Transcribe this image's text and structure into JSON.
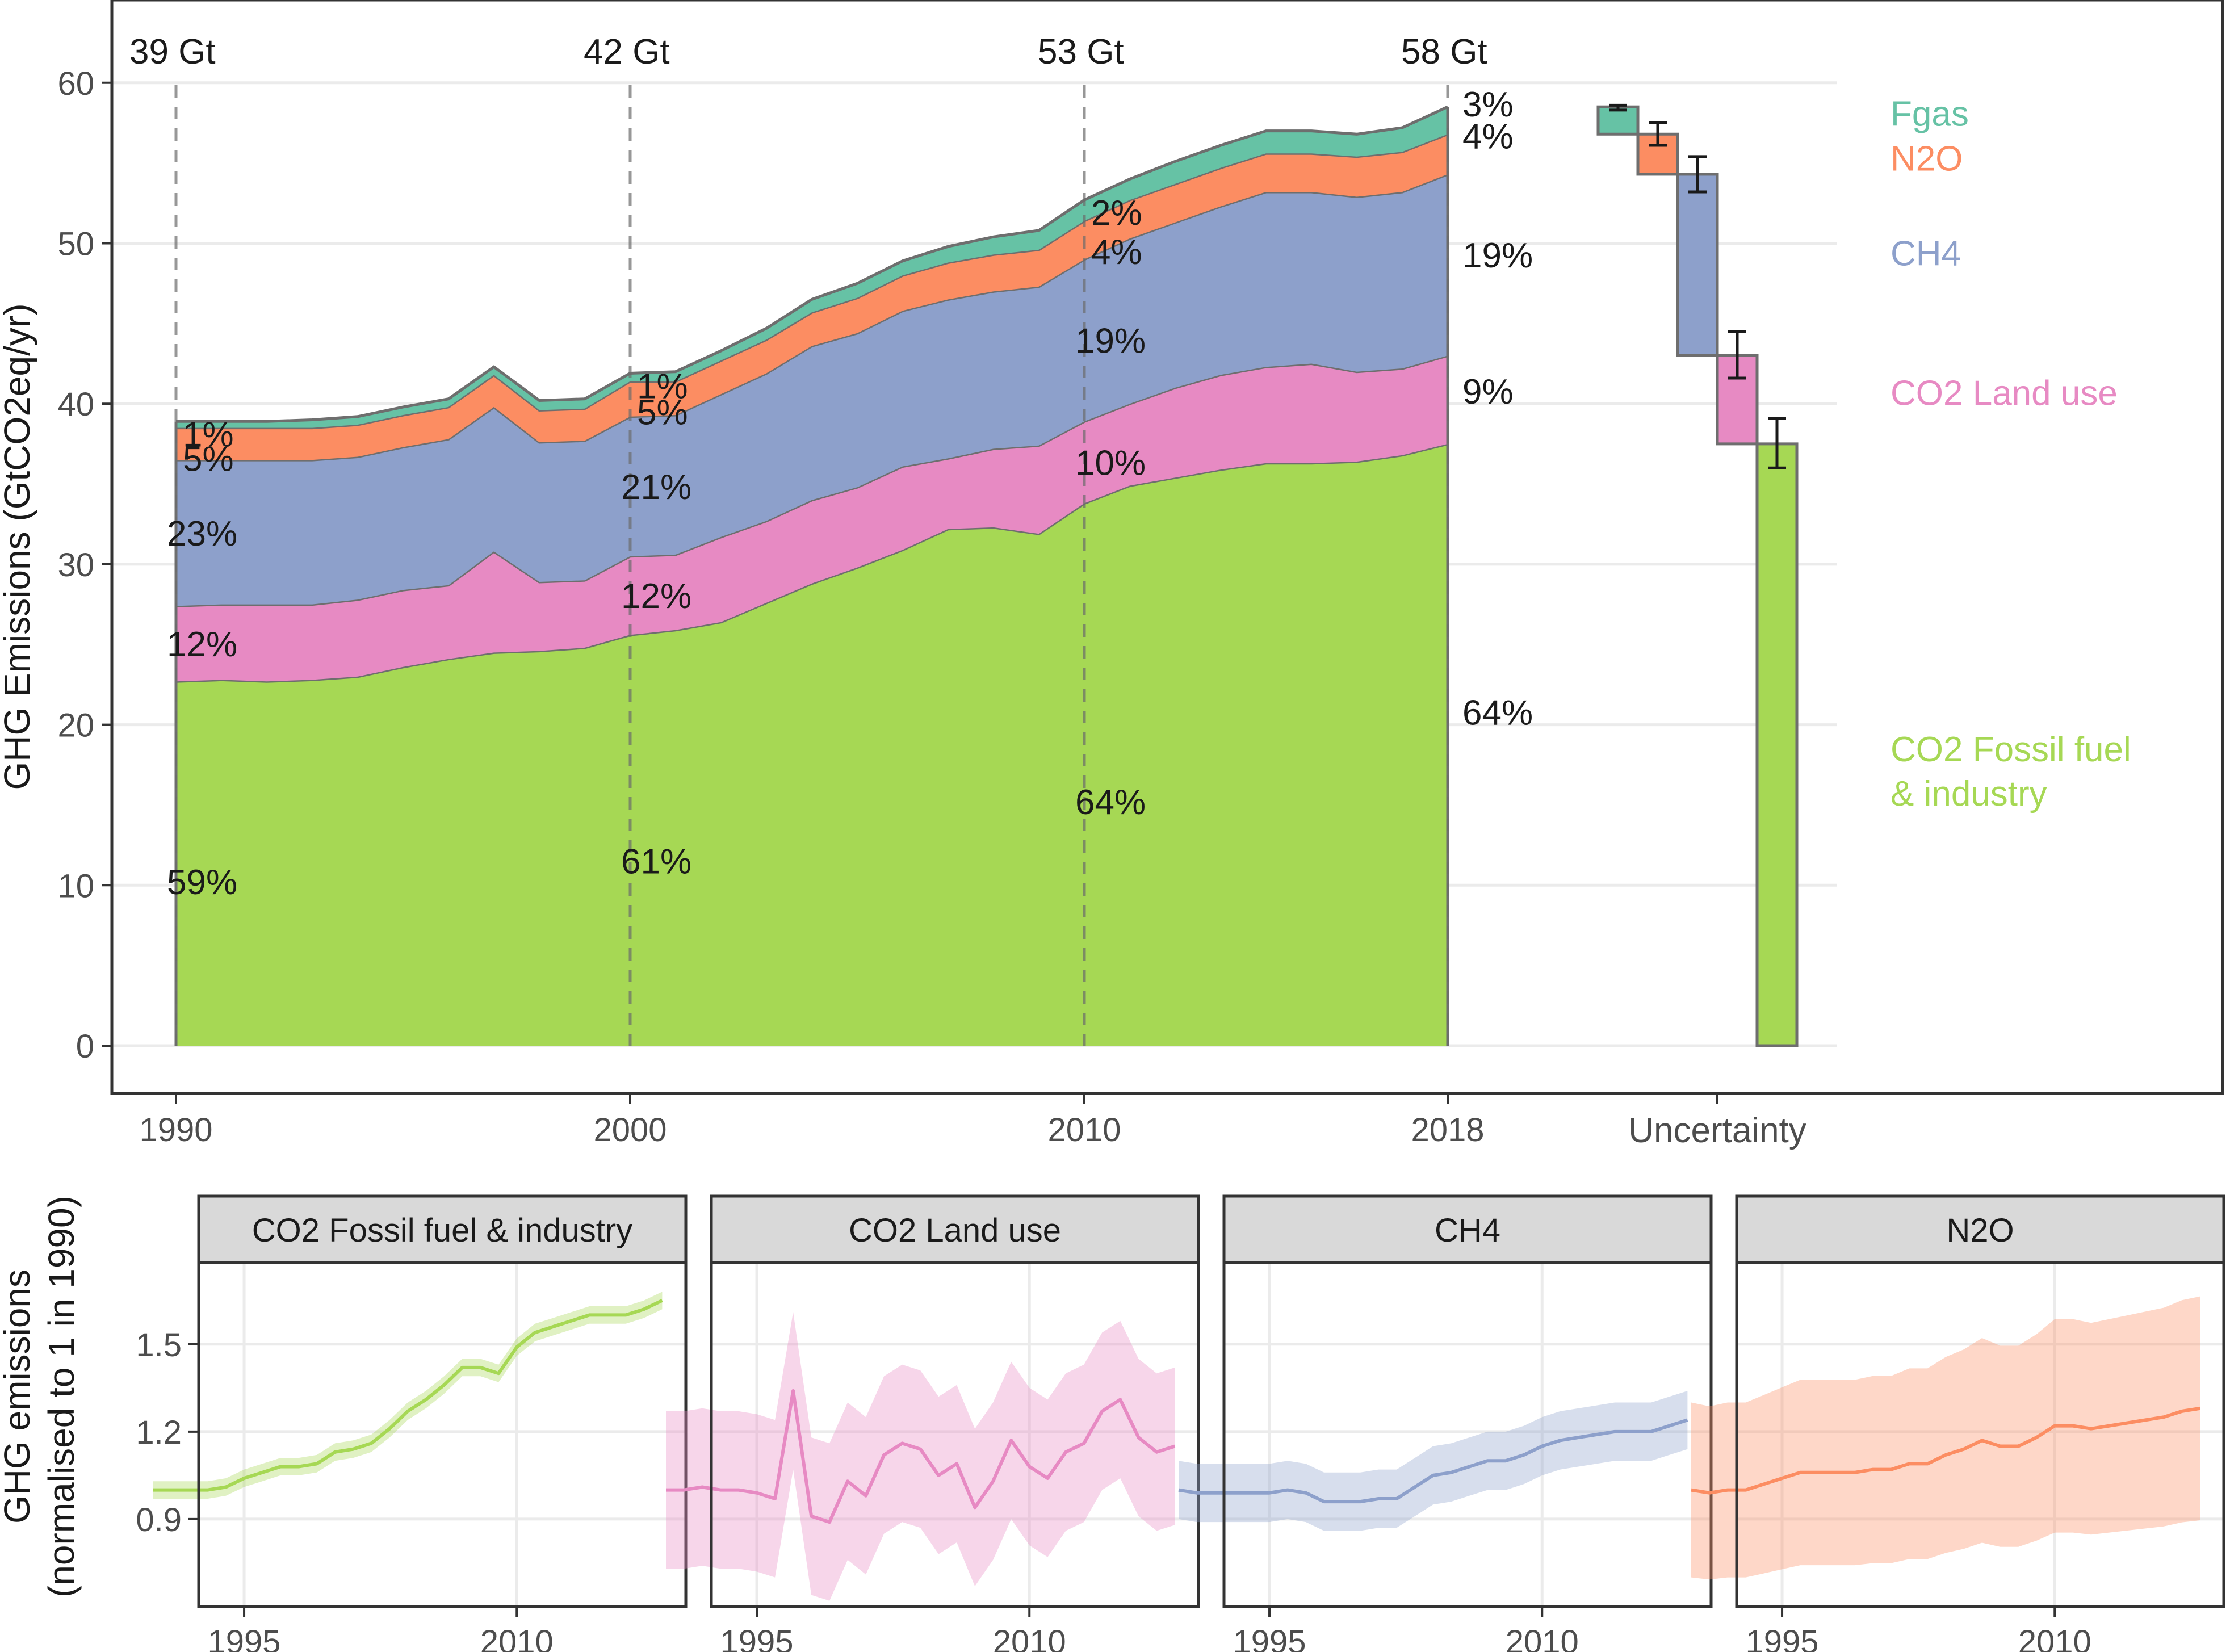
{
  "chart_data": [
    {
      "type": "area",
      "stacked": true,
      "ylabel": "GHG Emissions (GtCO2eq/yr)",
      "xlabel": "",
      "ylim": [
        0,
        60
      ],
      "yticks": [
        0,
        10,
        20,
        30,
        40,
        50,
        60
      ],
      "xticks": [
        1990,
        2000,
        2010,
        2018
      ],
      "grid": true,
      "x": [
        1990,
        1991,
        1992,
        1993,
        1994,
        1995,
        1996,
        1997,
        1998,
        1999,
        2000,
        2001,
        2002,
        2003,
        2004,
        2005,
        2006,
        2007,
        2008,
        2009,
        2010,
        2011,
        2012,
        2013,
        2014,
        2015,
        2016,
        2017,
        2018
      ],
      "series": [
        {
          "name": "CO2 Fossil fuel & industry",
          "color": "#A6D854",
          "values": [
            22.7,
            22.8,
            22.7,
            22.8,
            23.0,
            23.6,
            24.1,
            24.5,
            24.6,
            24.8,
            25.6,
            25.9,
            26.4,
            27.6,
            28.8,
            29.8,
            30.9,
            32.2,
            32.3,
            31.9,
            33.8,
            34.9,
            35.4,
            35.9,
            36.3,
            36.3,
            36.4,
            36.8,
            37.5
          ]
        },
        {
          "name": "CO2 Land use",
          "color": "#E78AC3",
          "values": [
            4.7,
            4.7,
            4.8,
            4.7,
            4.8,
            4.8,
            4.6,
            6.3,
            4.3,
            4.2,
            4.9,
            4.7,
            5.3,
            5.1,
            5.2,
            5.0,
            5.2,
            4.4,
            4.9,
            5.5,
            5.1,
            5.1,
            5.6,
            5.9,
            6.0,
            6.2,
            5.6,
            5.4,
            5.5
          ]
        },
        {
          "name": "CH4",
          "color": "#8DA0CB",
          "values": [
            9.1,
            9.0,
            9.0,
            9.0,
            8.9,
            8.9,
            9.1,
            9.0,
            8.7,
            8.7,
            8.7,
            8.7,
            8.9,
            9.2,
            9.6,
            9.6,
            9.7,
            9.9,
            9.8,
            9.9,
            10.1,
            10.3,
            10.3,
            10.5,
            10.9,
            10.7,
            10.9,
            11.0,
            11.3
          ]
        },
        {
          "name": "N2O",
          "color": "#FC8D62",
          "values": [
            2.0,
            2.0,
            2.0,
            2.0,
            2.0,
            2.0,
            2.0,
            2.0,
            2.0,
            2.0,
            2.2,
            2.1,
            2.1,
            2.1,
            2.1,
            2.2,
            2.2,
            2.3,
            2.3,
            2.3,
            2.4,
            2.4,
            2.4,
            2.4,
            2.4,
            2.4,
            2.5,
            2.5,
            2.5
          ]
        },
        {
          "name": "Fgas",
          "color": "#66C2A5",
          "values": [
            0.4,
            0.4,
            0.4,
            0.5,
            0.5,
            0.5,
            0.5,
            0.5,
            0.6,
            0.6,
            0.5,
            0.6,
            0.6,
            0.7,
            0.8,
            0.9,
            0.9,
            1.0,
            1.1,
            1.2,
            1.3,
            1.3,
            1.4,
            1.4,
            1.4,
            1.4,
            1.4,
            1.5,
            1.7
          ]
        }
      ],
      "gt_markers": [
        {
          "year": 1990,
          "label": "39 Gt"
        },
        {
          "year": 2000,
          "label": "42 Gt"
        },
        {
          "year": 2010,
          "label": "53 Gt"
        },
        {
          "year": 2018,
          "label": "58 Gt"
        }
      ],
      "percent_labels": [
        {
          "year": 1990,
          "labels": [
            "59%",
            "12%",
            "23%",
            "5%",
            "1%"
          ]
        },
        {
          "year": 2000,
          "labels": [
            "61%",
            "12%",
            "21%",
            "5%",
            "1%"
          ]
        },
        {
          "year": 2010,
          "labels": [
            "64%",
            "10%",
            "19%",
            "4%",
            "2%"
          ]
        },
        {
          "year": 2018,
          "labels": [
            "64%",
            "9%",
            "19%",
            "4%",
            "3%"
          ]
        }
      ],
      "uncertainty": {
        "label": "Uncertainty",
        "bars": [
          {
            "name": "Fgas",
            "low": 56.8,
            "high": 58.5,
            "err_low": 58.3,
            "err_high": 58.6
          },
          {
            "name": "N2O",
            "low": 54.3,
            "high": 56.8,
            "err_low": 56.1,
            "err_high": 57.5
          },
          {
            "name": "CH4",
            "low": 43.0,
            "high": 54.3,
            "err_low": 53.2,
            "err_high": 55.4
          },
          {
            "name": "CO2 Land use",
            "low": 37.5,
            "high": 43.0,
            "err_low": 41.6,
            "err_high": 44.5
          },
          {
            "name": "CO2 Fossil fuel & industry",
            "low": 0.0,
            "high": 37.5,
            "err_low": 36.0,
            "err_high": 39.1
          }
        ]
      },
      "legend": [
        {
          "name": "Fgas",
          "color": "#66C2A5",
          "lines": [
            "Fgas"
          ]
        },
        {
          "name": "N2O",
          "color": "#FC8D62",
          "lines": [
            "N2O"
          ]
        },
        {
          "name": "CH4",
          "color": "#8DA0CB",
          "lines": [
            "CH4"
          ]
        },
        {
          "name": "CO2 Land use",
          "color": "#E78AC3",
          "lines": [
            "CO2 Land use"
          ]
        },
        {
          "name": "CO2 Fossil fuel & industry",
          "color": "#A6D854",
          "lines": [
            "CO2 Fossil fuel",
            "& industry"
          ]
        }
      ]
    },
    {
      "type": "line",
      "facets": true,
      "ylabel_lines": [
        "GHG emissions",
        "(normalised to 1 in 1990)"
      ],
      "ylim": [
        0.6,
        1.78
      ],
      "yticks": [
        0.9,
        1.2,
        1.5
      ],
      "xlim": [
        1990,
        2018
      ],
      "xticks": [
        1995,
        2010
      ],
      "x": [
        1990,
        1991,
        1992,
        1993,
        1994,
        1995,
        1996,
        1997,
        1998,
        1999,
        2000,
        2001,
        2002,
        2003,
        2004,
        2005,
        2006,
        2007,
        2008,
        2009,
        2010,
        2011,
        2012,
        2013,
        2014,
        2015,
        2016,
        2017,
        2018
      ],
      "panels": [
        {
          "title": "CO2 Fossil fuel & industry",
          "color": "#A6D854",
          "values": [
            1.0,
            1.0,
            1.0,
            1.0,
            1.01,
            1.04,
            1.06,
            1.08,
            1.08,
            1.09,
            1.13,
            1.14,
            1.16,
            1.21,
            1.27,
            1.31,
            1.36,
            1.42,
            1.42,
            1.4,
            1.49,
            1.54,
            1.56,
            1.58,
            1.6,
            1.6,
            1.6,
            1.62,
            1.65
          ],
          "band": 0.03
        },
        {
          "title": "CO2 Land use",
          "color": "#E78AC3",
          "values": [
            1.0,
            1.0,
            1.01,
            1.0,
            1.0,
            0.99,
            0.97,
            1.34,
            0.91,
            0.89,
            1.03,
            0.98,
            1.12,
            1.16,
            1.14,
            1.05,
            1.09,
            0.94,
            1.03,
            1.17,
            1.08,
            1.04,
            1.13,
            1.16,
            1.27,
            1.31,
            1.18,
            1.13,
            1.15
          ],
          "band": 0.27
        },
        {
          "title": "CH4",
          "color": "#8DA0CB",
          "values": [
            1.0,
            0.99,
            0.99,
            0.99,
            0.99,
            0.99,
            1.0,
            0.99,
            0.96,
            0.96,
            0.96,
            0.97,
            0.97,
            1.01,
            1.05,
            1.06,
            1.08,
            1.1,
            1.1,
            1.12,
            1.15,
            1.17,
            1.18,
            1.19,
            1.2,
            1.2,
            1.2,
            1.22,
            1.24
          ],
          "band": 0.1
        },
        {
          "title": "N2O",
          "color": "#FC8D62",
          "values": [
            1.0,
            0.99,
            1.0,
            1.0,
            1.02,
            1.04,
            1.06,
            1.06,
            1.06,
            1.06,
            1.07,
            1.07,
            1.09,
            1.09,
            1.12,
            1.14,
            1.17,
            1.15,
            1.15,
            1.18,
            1.22,
            1.22,
            1.21,
            1.22,
            1.23,
            1.24,
            1.25,
            1.27,
            1.28
          ],
          "band_frac": 0.3
        }
      ]
    }
  ]
}
